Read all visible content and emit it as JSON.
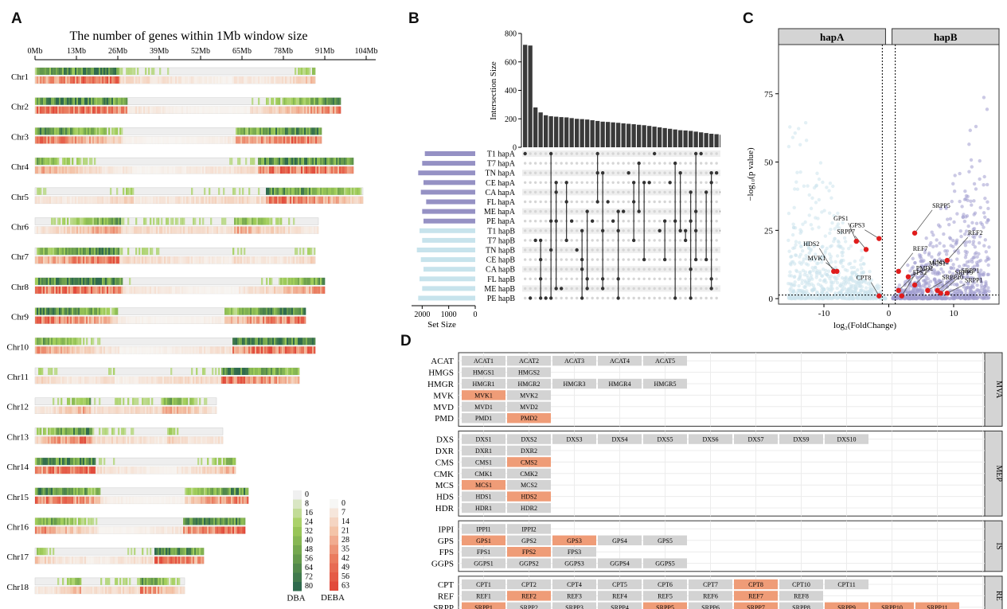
{
  "panels": {
    "a": "A",
    "b": "B",
    "c": "C",
    "d": "D"
  },
  "chart_data": [
    {
      "panel": "A",
      "type": "heatmap",
      "title": "The number of genes within 1Mb window size",
      "x_ticks": [
        "0Mb",
        "13Mb",
        "26Mb",
        "39Mb",
        "52Mb",
        "65Mb",
        "78Mb",
        "91Mb",
        "104Mb"
      ],
      "chromosomes": [
        {
          "name": "Chr1",
          "length_mb": 88
        },
        {
          "name": "Chr2",
          "length_mb": 96
        },
        {
          "name": "Chr3",
          "length_mb": 90
        },
        {
          "name": "Chr4",
          "length_mb": 100
        },
        {
          "name": "Chr5",
          "length_mb": 103
        },
        {
          "name": "Chr6",
          "length_mb": 89
        },
        {
          "name": "Chr7",
          "length_mb": 88
        },
        {
          "name": "Chr8",
          "length_mb": 91
        },
        {
          "name": "Chr9",
          "length_mb": 85
        },
        {
          "name": "Chr10",
          "length_mb": 88
        },
        {
          "name": "Chr11",
          "length_mb": 83
        },
        {
          "name": "Chr12",
          "length_mb": 57
        },
        {
          "name": "Chr13",
          "length_mb": 59
        },
        {
          "name": "Chr14",
          "length_mb": 63
        },
        {
          "name": "Chr15",
          "length_mb": 67
        },
        {
          "name": "Chr16",
          "length_mb": 66
        },
        {
          "name": "Chr17",
          "length_mb": 53
        },
        {
          "name": "Chr18",
          "length_mb": 47
        }
      ],
      "legend_dba": {
        "label": "DBA",
        "ticks": [
          "0",
          "8",
          "16",
          "24",
          "32",
          "40",
          "48",
          "56",
          "64",
          "72",
          "80"
        ],
        "colors": [
          "#f0f0f0",
          "#a3cf5b",
          "#6a9e4c",
          "#2f6a4d"
        ]
      },
      "legend_deba": {
        "label": "DEBA",
        "ticks": [
          "0",
          "7",
          "14",
          "21",
          "28",
          "35",
          "42",
          "49",
          "56",
          "63"
        ],
        "colors": [
          "#f7f7f5",
          "#f4c4a8",
          "#ea7c5f",
          "#e24a3b"
        ]
      }
    },
    {
      "panel": "B",
      "type": "bar",
      "ylabel": "Intersection Size",
      "y_ticks": [
        "0",
        "200",
        "400",
        "600",
        "800"
      ],
      "ylim": [
        0,
        800
      ],
      "intersection_sizes": [
        720,
        715,
        280,
        245,
        225,
        218,
        215,
        212,
        210,
        205,
        200,
        198,
        195,
        190,
        185,
        180,
        178,
        175,
        172,
        168,
        165,
        162,
        158,
        155,
        150,
        145,
        140,
        135,
        130,
        125,
        120,
        118,
        115,
        110,
        105,
        100,
        95,
        92,
        88,
        85,
        80,
        75,
        72,
        70,
        68,
        66,
        64,
        62,
        60,
        58,
        56
      ],
      "xlabel": "Set Size",
      "set_size_ticks": [
        "2000",
        "1000",
        "0"
      ],
      "sets": [
        {
          "name": "T1 hapA",
          "size": 1900,
          "group": "A"
        },
        {
          "name": "T7 hapA",
          "size": 2000,
          "group": "A"
        },
        {
          "name": "TN hapA",
          "size": 2150,
          "group": "A"
        },
        {
          "name": "CE hapA",
          "size": 1950,
          "group": "A"
        },
        {
          "name": "CA hapA",
          "size": 2050,
          "group": "A"
        },
        {
          "name": "FL hapA",
          "size": 1850,
          "group": "A"
        },
        {
          "name": "ME hapA",
          "size": 2000,
          "group": "A"
        },
        {
          "name": "PE hapA",
          "size": 1950,
          "group": "A"
        },
        {
          "name": "T1 hapB",
          "size": 2100,
          "group": "B"
        },
        {
          "name": "T7 hapB",
          "size": 2000,
          "group": "B"
        },
        {
          "name": "TN hapB",
          "size": 2200,
          "group": "B"
        },
        {
          "name": "CE hapB",
          "size": 2050,
          "group": "B"
        },
        {
          "name": "CA hapB",
          "size": 1950,
          "group": "B"
        },
        {
          "name": "FL hapB",
          "size": 2100,
          "group": "B"
        },
        {
          "name": "ME hapB",
          "size": 2000,
          "group": "B"
        },
        {
          "name": "PE hapB",
          "size": 2150,
          "group": "B"
        }
      ],
      "colors": {
        "hapA": "#9591c4",
        "hapB": "#c7e3ec",
        "bar": "#3a3a3a"
      }
    },
    {
      "panel": "C",
      "type": "scatter",
      "strips": [
        "hapA",
        "hapB"
      ],
      "xlabel": "log₂(FoldChange)",
      "ylabel": "−log₁₀(p value)",
      "x_ticks": [
        -10,
        0,
        10
      ],
      "y_ticks": [
        0,
        25,
        50,
        75
      ],
      "xlim": [
        -17,
        17
      ],
      "ylim": [
        -2,
        93
      ],
      "highlighted": [
        {
          "label": "GPS3",
          "x": -1.5,
          "y": 22
        },
        {
          "label": "SRPP7",
          "x": -3.5,
          "y": 18
        },
        {
          "label": "GPS1",
          "x": -5,
          "y": 21
        },
        {
          "label": "HDS2",
          "x": -8.5,
          "y": 10
        },
        {
          "label": "MVK1",
          "x": -8,
          "y": 10
        },
        {
          "label": "CPT8",
          "x": -1.5,
          "y": 1
        },
        {
          "label": "REF7",
          "x": 1.5,
          "y": 10
        },
        {
          "label": "SRPP5",
          "x": 4,
          "y": 24
        },
        {
          "label": "MCS1",
          "x": 3,
          "y": 8
        },
        {
          "label": "FPS2",
          "x": 1.5,
          "y": 3
        },
        {
          "label": "CMS2",
          "x": 4,
          "y": 5
        },
        {
          "label": "REF2",
          "x": 9,
          "y": 14
        },
        {
          "label": "SRPP10",
          "x": 6,
          "y": 3
        },
        {
          "label": "SRPP9",
          "x": 7.5,
          "y": 3
        },
        {
          "label": "SRPP1",
          "x": 8,
          "y": 2
        },
        {
          "label": "PMD2",
          "x": 2,
          "y": 1
        },
        {
          "label": "SRPP1",
          "x": 9,
          "y": 2
        }
      ],
      "colors": {
        "hapA": "#cce4ec",
        "hapB": "#a09cd0",
        "highlight": "#e01c1c"
      }
    },
    {
      "panel": "D",
      "type": "table",
      "groups": [
        {
          "name": "MVA",
          "rows": [
            {
              "label": "ACAT",
              "genes": [
                [
                  "ACAT1",
                  0
                ],
                [
                  "ACAT2",
                  0
                ],
                [
                  "ACAT3",
                  0
                ],
                [
                  "ACAT4",
                  0
                ],
                [
                  "ACAT5",
                  0
                ]
              ]
            },
            {
              "label": "HMGS",
              "genes": [
                [
                  "HMGS1",
                  0
                ],
                [
                  "HMGS2",
                  0
                ]
              ]
            },
            {
              "label": "HMGR",
              "genes": [
                [
                  "HMGR1",
                  0
                ],
                [
                  "HMGR2",
                  0
                ],
                [
                  "HMGR3",
                  0
                ],
                [
                  "HMGR4",
                  0
                ],
                [
                  "HMGR5",
                  0
                ]
              ]
            },
            {
              "label": "MVK",
              "genes": [
                [
                  "MVK1",
                  1
                ],
                [
                  "MVK2",
                  0
                ]
              ]
            },
            {
              "label": "MVD",
              "genes": [
                [
                  "MVD1",
                  0
                ],
                [
                  "MVD2",
                  0
                ]
              ]
            },
            {
              "label": "PMD",
              "genes": [
                [
                  "PMD1",
                  0
                ],
                [
                  "PMD2",
                  1
                ]
              ]
            }
          ]
        },
        {
          "name": "MEP",
          "rows": [
            {
              "label": "DXS",
              "genes": [
                [
                  "DXS1",
                  0
                ],
                [
                  "DXS2",
                  0
                ],
                [
                  "DXS3",
                  0
                ],
                [
                  "DXS4",
                  0
                ],
                [
                  "DXS5",
                  0
                ],
                [
                  "DXS6",
                  0
                ],
                [
                  "DXS7",
                  0
                ],
                [
                  "DXS9",
                  0
                ],
                [
                  "DXS10",
                  0
                ]
              ]
            },
            {
              "label": "DXR",
              "genes": [
                [
                  "DXR1",
                  0
                ],
                [
                  "DXR2",
                  0
                ]
              ]
            },
            {
              "label": "CMS",
              "genes": [
                [
                  "CMS1",
                  0
                ],
                [
                  "CMS2",
                  1
                ]
              ]
            },
            {
              "label": "CMK",
              "genes": [
                [
                  "CMK1",
                  0
                ],
                [
                  "CMK2",
                  0
                ]
              ]
            },
            {
              "label": "MCS",
              "genes": [
                [
                  "MCS1",
                  1
                ],
                [
                  "MCS2",
                  0
                ]
              ]
            },
            {
              "label": "HDS",
              "genes": [
                [
                  "HDS1",
                  0
                ],
                [
                  "HDS2",
                  1
                ]
              ]
            },
            {
              "label": "HDR",
              "genes": [
                [
                  "HDR1",
                  0
                ],
                [
                  "HDR2",
                  0
                ]
              ]
            }
          ]
        },
        {
          "name": "IS",
          "rows": [
            {
              "label": "IPPI",
              "genes": [
                [
                  "IPPI1",
                  0
                ],
                [
                  "IPPI2",
                  0
                ]
              ]
            },
            {
              "label": "GPS",
              "genes": [
                [
                  "GPS1",
                  1
                ],
                [
                  "GPS2",
                  0
                ],
                [
                  "GPS3",
                  1
                ],
                [
                  "GPS4",
                  0
                ],
                [
                  "GPS5",
                  0
                ]
              ]
            },
            {
              "label": "FPS",
              "genes": [
                [
                  "FPS1",
                  0
                ],
                [
                  "FPS2",
                  1
                ],
                [
                  "FPS3",
                  0
                ]
              ]
            },
            {
              "label": "GGPS",
              "genes": [
                [
                  "GGPS1",
                  0
                ],
                [
                  "GGPS2",
                  0
                ],
                [
                  "GGPS3",
                  0
                ],
                [
                  "GGPS4",
                  0
                ],
                [
                  "GGPS5",
                  0
                ]
              ]
            }
          ]
        },
        {
          "name": "RE",
          "rows": [
            {
              "label": "CPT",
              "genes": [
                [
                  "CPT1",
                  0
                ],
                [
                  "CPT2",
                  0
                ],
                [
                  "CPT4",
                  0
                ],
                [
                  "CPT5",
                  0
                ],
                [
                  "CPT6",
                  0
                ],
                [
                  "CPT7",
                  0
                ],
                [
                  "CPT8",
                  1
                ],
                [
                  "CPT10",
                  0
                ],
                [
                  "CPT11",
                  0
                ]
              ]
            },
            {
              "label": "REF",
              "genes": [
                [
                  "REF1",
                  0
                ],
                [
                  "REF2",
                  1
                ],
                [
                  "REF3",
                  0
                ],
                [
                  "REF4",
                  0
                ],
                [
                  "REF5",
                  0
                ],
                [
                  "REF6",
                  0
                ],
                [
                  "REF7",
                  1
                ],
                [
                  "REF8",
                  0
                ]
              ]
            },
            {
              "label": "SRPP",
              "genes": [
                [
                  "SRPP1",
                  1
                ],
                [
                  "SRPP2",
                  0
                ],
                [
                  "SRPP3",
                  0
                ],
                [
                  "SRPP4",
                  0
                ],
                [
                  "SRPP5",
                  1
                ],
                [
                  "SRPP6",
                  0
                ],
                [
                  "SRPP7",
                  1
                ],
                [
                  "SRPP8",
                  0
                ],
                [
                  "SRPP9",
                  1
                ],
                [
                  "SRPP10",
                  1
                ],
                [
                  "SRPP11",
                  1
                ]
              ]
            }
          ]
        }
      ],
      "colors": {
        "normal": "#d3d3d3",
        "highlight": "#ef9c77",
        "strip": "#d4d4d4"
      }
    }
  ]
}
